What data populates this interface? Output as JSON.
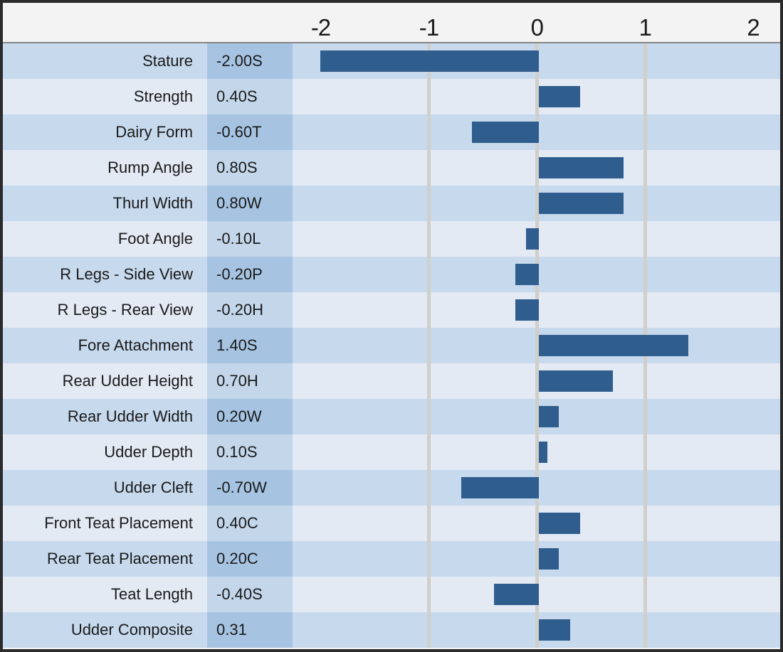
{
  "chart_data": {
    "type": "bar",
    "orientation": "horizontal",
    "title": "",
    "xlabel": "",
    "ylabel": "",
    "categories": [
      "Stature",
      "Strength",
      "Dairy Form",
      "Rump Angle",
      "Thurl Width",
      "Foot Angle",
      "R Legs - Side View",
      "R Legs - Rear View",
      "Fore Attachment",
      "Rear Udder Height",
      "Rear Udder Width",
      "Udder Depth",
      "Udder Cleft",
      "Front Teat Placement",
      "Rear Teat Placement",
      "Teat Length",
      "Udder Composite"
    ],
    "values": [
      -2.0,
      0.4,
      -0.6,
      0.8,
      0.8,
      -0.1,
      -0.2,
      -0.2,
      1.4,
      0.7,
      0.2,
      0.1,
      -0.7,
      0.4,
      0.2,
      -0.4,
      0.31
    ],
    "value_labels": [
      "-2.00S",
      "0.40S",
      "-0.60T",
      "0.80S",
      "0.80W",
      "-0.10L",
      "-0.20P",
      "-0.20H",
      "1.40S",
      "0.70H",
      "0.20W",
      "0.10S",
      "-0.70W",
      "0.40C",
      "0.20C",
      "-0.40S",
      "0.31"
    ],
    "xlim": [
      -2.26,
      2.25
    ],
    "x_ticks": [
      -2,
      -1,
      0,
      1,
      2
    ],
    "x_tick_labels": [
      "-2",
      "-1",
      "0",
      "1",
      "2"
    ],
    "gridlines": [
      -1,
      0,
      1
    ],
    "grid": true,
    "legend": false,
    "legend_position": "none"
  },
  "colors": {
    "bar": "#2f5d8e",
    "row_odd_bg": "#c7d9ed",
    "row_odd_value_bg": "#a6c4e2",
    "row_even_bg": "#e3eaf4",
    "row_even_value_bg": "#c3d6ea",
    "gridline": "#d0cfca",
    "header_bg": "#f3f3f3",
    "border": "#2b2b2b",
    "text": "#1a1a1a"
  }
}
